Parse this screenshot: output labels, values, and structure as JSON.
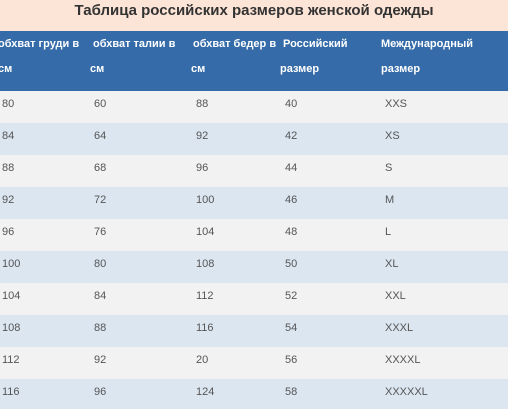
{
  "title": "Таблица российских размеров женской одежды",
  "table": {
    "headers": [
      {
        "line1": "обхват груди в",
        "line2": "см"
      },
      {
        "line1": "обхват талии в",
        "line2": "см"
      },
      {
        "line1": "обхват бедер в",
        "line2": "см"
      },
      {
        "line1": "Российский",
        "line2": "размер"
      },
      {
        "line1": "Международный",
        "line2": "размер"
      }
    ],
    "rows": [
      [
        "80",
        "60",
        "88",
        "40",
        "XXS"
      ],
      [
        "84",
        "64",
        "92",
        "42",
        "XS"
      ],
      [
        "88",
        "68",
        "96",
        "44",
        "S"
      ],
      [
        "92",
        "72",
        "100",
        "46",
        "M"
      ],
      [
        "96",
        "76",
        "104",
        "48",
        "L"
      ],
      [
        "100",
        "80",
        "108",
        "50",
        "XL"
      ],
      [
        "104",
        "84",
        "112",
        "52",
        "XXL"
      ],
      [
        "108",
        "88",
        "116",
        "54",
        "XXXL"
      ],
      [
        "112",
        "92",
        "20",
        "56",
        "XXXXL"
      ],
      [
        "116",
        "96",
        "124",
        "58",
        "XXXXXL"
      ]
    ]
  },
  "colors": {
    "title_background": "#fce4d6",
    "header_background": "#346ba8",
    "row_odd": "#f2f2f2",
    "row_even": "#dce6f1"
  }
}
